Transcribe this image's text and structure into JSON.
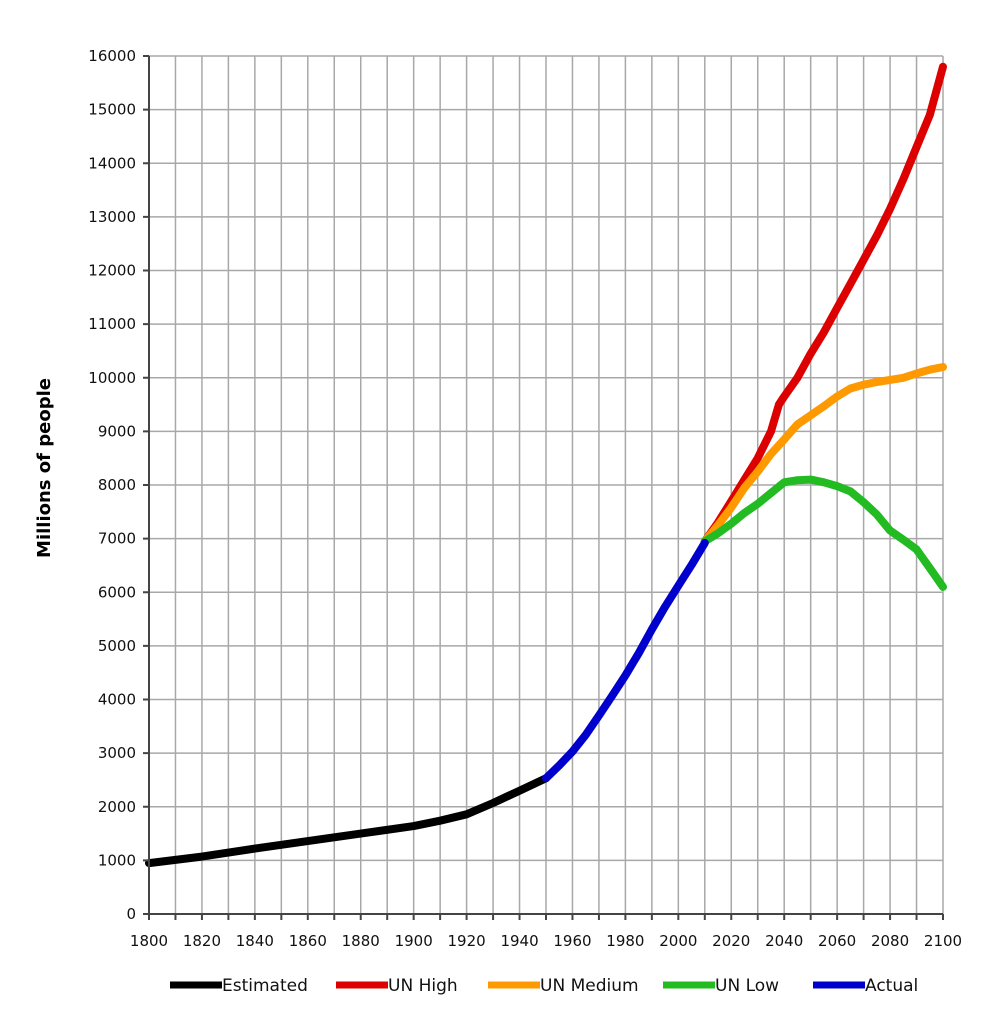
{
  "chart_data": {
    "type": "line",
    "title": "",
    "xlabel": "",
    "ylabel": "Millions of people",
    "xlim": [
      1800,
      2100
    ],
    "ylim": [
      0,
      16000
    ],
    "x_ticks": [
      "1800",
      "1820",
      "1840",
      "1860",
      "1880",
      "1900",
      "1920",
      "1940",
      "1960",
      "1980",
      "2000",
      "2020",
      "2040",
      "2060",
      "2080",
      "2100"
    ],
    "y_ticks": [
      "0",
      "1000",
      "2000",
      "3000",
      "4000",
      "5000",
      "6000",
      "7000",
      "8000",
      "9000",
      "10000",
      "11000",
      "12000",
      "13000",
      "14000",
      "15000",
      "16000"
    ],
    "grid": true,
    "legend_position": "bottom",
    "series": [
      {
        "name": "Estimated",
        "color": "#000000",
        "points": [
          [
            1800,
            950
          ],
          [
            1820,
            1070
          ],
          [
            1840,
            1220
          ],
          [
            1860,
            1360
          ],
          [
            1880,
            1500
          ],
          [
            1900,
            1640
          ],
          [
            1910,
            1740
          ],
          [
            1920,
            1860
          ],
          [
            1930,
            2070
          ],
          [
            1940,
            2300
          ],
          [
            1950,
            2530
          ]
        ]
      },
      {
        "name": "UN High",
        "color": "#dd0000",
        "points": [
          [
            2010,
            6950
          ],
          [
            2015,
            7300
          ],
          [
            2020,
            7700
          ],
          [
            2025,
            8100
          ],
          [
            2030,
            8500
          ],
          [
            2035,
            9000
          ],
          [
            2038,
            9500
          ],
          [
            2040,
            9650
          ],
          [
            2045,
            10000
          ],
          [
            2050,
            10450
          ],
          [
            2055,
            10850
          ],
          [
            2060,
            11300
          ],
          [
            2065,
            11750
          ],
          [
            2070,
            12200
          ],
          [
            2075,
            12650
          ],
          [
            2080,
            13150
          ],
          [
            2085,
            13700
          ],
          [
            2090,
            14300
          ],
          [
            2095,
            14900
          ],
          [
            2100,
            15800
          ]
        ]
      },
      {
        "name": "UN Medium",
        "color": "#ff9900",
        "points": [
          [
            2010,
            6950
          ],
          [
            2015,
            7250
          ],
          [
            2020,
            7580
          ],
          [
            2025,
            7950
          ],
          [
            2030,
            8250
          ],
          [
            2035,
            8580
          ],
          [
            2040,
            8850
          ],
          [
            2045,
            9130
          ],
          [
            2050,
            9300
          ],
          [
            2055,
            9470
          ],
          [
            2060,
            9650
          ],
          [
            2065,
            9800
          ],
          [
            2070,
            9870
          ],
          [
            2075,
            9920
          ],
          [
            2080,
            9960
          ],
          [
            2085,
            10000
          ],
          [
            2090,
            10080
          ],
          [
            2095,
            10150
          ],
          [
            2100,
            10200
          ]
        ]
      },
      {
        "name": "UN Low",
        "color": "#22bb22",
        "points": [
          [
            2010,
            6950
          ],
          [
            2015,
            7100
          ],
          [
            2020,
            7280
          ],
          [
            2025,
            7480
          ],
          [
            2030,
            7650
          ],
          [
            2035,
            7850
          ],
          [
            2040,
            8050
          ],
          [
            2045,
            8090
          ],
          [
            2050,
            8100
          ],
          [
            2055,
            8050
          ],
          [
            2060,
            7980
          ],
          [
            2065,
            7880
          ],
          [
            2070,
            7680
          ],
          [
            2075,
            7450
          ],
          [
            2080,
            7150
          ],
          [
            2085,
            6980
          ],
          [
            2090,
            6800
          ],
          [
            2095,
            6450
          ],
          [
            2100,
            6100
          ]
        ]
      },
      {
        "name": "Actual",
        "color": "#0000cc",
        "points": [
          [
            1950,
            2530
          ],
          [
            1955,
            2770
          ],
          [
            1960,
            3030
          ],
          [
            1965,
            3340
          ],
          [
            1970,
            3700
          ],
          [
            1975,
            4070
          ],
          [
            1980,
            4450
          ],
          [
            1985,
            4860
          ],
          [
            1990,
            5310
          ],
          [
            1995,
            5730
          ],
          [
            2000,
            6120
          ],
          [
            2005,
            6510
          ],
          [
            2010,
            6920
          ]
        ]
      }
    ]
  }
}
